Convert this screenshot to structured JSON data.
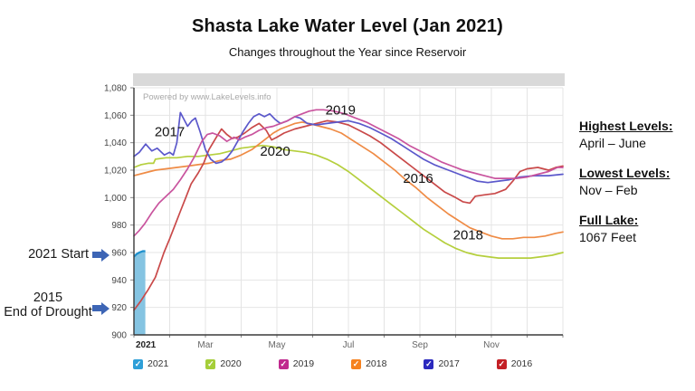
{
  "title": "Shasta Lake Water Level (Jan 2021)",
  "subtitle": "Changes throughout the Year since Reservoir",
  "watermark": "Powered by www.LakeLevels.info",
  "left_annotations": {
    "start_label": "2021 Start",
    "drought_year": "2015",
    "drought_label": "End of Drought",
    "arrow_color": "#3d65b5"
  },
  "info_panel": {
    "items": [
      {
        "heading": "Highest Levels:",
        "value": "April – June"
      },
      {
        "heading": "Lowest Levels:",
        "value": "Nov – Feb"
      },
      {
        "heading": "Full Lake:",
        "value": "1067 Feet"
      }
    ]
  },
  "legend": {
    "items": [
      {
        "label": "2021",
        "color": "#2E9FD8",
        "checked": true
      },
      {
        "label": "2020",
        "color": "#A5CE39",
        "checked": true
      },
      {
        "label": "2019",
        "color": "#C0288E",
        "checked": true
      },
      {
        "label": "2018",
        "color": "#F6821F",
        "checked": true
      },
      {
        "label": "2017",
        "color": "#2B29BE",
        "checked": true
      },
      {
        "label": "2016",
        "color": "#C42025",
        "checked": true
      }
    ]
  },
  "chart_data": {
    "type": "line",
    "title": "Shasta Lake water level by month (feet above sea level)",
    "xlabel": "",
    "ylabel": "",
    "grid": true,
    "x_axis": {
      "unit": "month",
      "range": [
        0,
        12
      ],
      "tick_months": [
        0,
        2,
        4,
        6,
        8,
        10
      ],
      "tick_labels": [
        "2021",
        "Mar",
        "May",
        "Jul",
        "Sep",
        "Nov"
      ]
    },
    "y_axis": {
      "min": 900,
      "max": 1080,
      "step": 20,
      "tick_labels": [
        "900",
        "920",
        "940",
        "960",
        "980",
        "1,000",
        "1,020",
        "1,040",
        "1,060",
        "1,080"
      ]
    },
    "ylim": [
      900,
      1080
    ],
    "series": [
      {
        "name": "2021",
        "type": "area",
        "color": "#1D8FCC",
        "fill": "#85C4E2",
        "points": [
          [
            0,
            957
          ],
          [
            0.08,
            959
          ],
          [
            0.15,
            960
          ],
          [
            0.25,
            961
          ],
          [
            0.32,
            961
          ]
        ]
      },
      {
        "name": "2020",
        "type": "line",
        "color": "#B5CF3D",
        "label_at": [
          3.95,
          1034
        ],
        "points": [
          [
            0,
            1022
          ],
          [
            0.2,
            1024
          ],
          [
            0.4,
            1025
          ],
          [
            0.55,
            1025
          ],
          [
            0.6,
            1028
          ],
          [
            0.9,
            1029
          ],
          [
            1.2,
            1029
          ],
          [
            1.5,
            1030
          ],
          [
            1.8,
            1030
          ],
          [
            2.1,
            1031
          ],
          [
            2.4,
            1032
          ],
          [
            2.7,
            1034
          ],
          [
            3.0,
            1036
          ],
          [
            3.3,
            1037
          ],
          [
            3.6,
            1038
          ],
          [
            3.9,
            1037
          ],
          [
            4.2,
            1035
          ],
          [
            4.5,
            1034
          ],
          [
            4.8,
            1033
          ],
          [
            5.1,
            1031
          ],
          [
            5.4,
            1028
          ],
          [
            5.7,
            1024
          ],
          [
            6.0,
            1019
          ],
          [
            6.3,
            1013
          ],
          [
            6.6,
            1007
          ],
          [
            6.9,
            1001
          ],
          [
            7.2,
            995
          ],
          [
            7.5,
            989
          ],
          [
            7.8,
            983
          ],
          [
            8.1,
            977
          ],
          [
            8.4,
            972
          ],
          [
            8.7,
            967
          ],
          [
            9.0,
            963
          ],
          [
            9.3,
            960
          ],
          [
            9.6,
            958
          ],
          [
            9.9,
            957
          ],
          [
            10.2,
            956
          ],
          [
            10.5,
            956
          ],
          [
            10.8,
            956
          ],
          [
            11.1,
            956
          ],
          [
            11.4,
            957
          ],
          [
            11.7,
            958
          ],
          [
            12,
            960
          ]
        ]
      },
      {
        "name": "2018",
        "type": "line",
        "color": "#EF8B45",
        "label_at": [
          9.35,
          973
        ],
        "points": [
          [
            0,
            1016
          ],
          [
            0.3,
            1018
          ],
          [
            0.6,
            1020
          ],
          [
            0.9,
            1021
          ],
          [
            1.2,
            1022
          ],
          [
            1.5,
            1023
          ],
          [
            1.8,
            1024
          ],
          [
            2.1,
            1025
          ],
          [
            2.4,
            1027
          ],
          [
            2.7,
            1028
          ],
          [
            3.0,
            1031
          ],
          [
            3.3,
            1035
          ],
          [
            3.6,
            1041
          ],
          [
            3.9,
            1047
          ],
          [
            4.1,
            1050
          ],
          [
            4.3,
            1052
          ],
          [
            4.5,
            1054
          ],
          [
            4.7,
            1055
          ],
          [
            4.9,
            1054
          ],
          [
            5.2,
            1052
          ],
          [
            5.5,
            1050
          ],
          [
            5.8,
            1047
          ],
          [
            6.1,
            1042
          ],
          [
            6.4,
            1037
          ],
          [
            6.7,
            1032
          ],
          [
            7.0,
            1026
          ],
          [
            7.3,
            1020
          ],
          [
            7.6,
            1013
          ],
          [
            7.9,
            1007
          ],
          [
            8.2,
            1000
          ],
          [
            8.5,
            994
          ],
          [
            8.8,
            988
          ],
          [
            9.1,
            983
          ],
          [
            9.4,
            978
          ],
          [
            9.7,
            975
          ],
          [
            10.0,
            972
          ],
          [
            10.3,
            970
          ],
          [
            10.6,
            970
          ],
          [
            10.9,
            971
          ],
          [
            11.2,
            971
          ],
          [
            11.5,
            972
          ],
          [
            11.8,
            974
          ],
          [
            12,
            975
          ]
        ]
      },
      {
        "name": "2016",
        "type": "line",
        "color": "#C94949",
        "label_at": [
          7.95,
          1014
        ],
        "points": [
          [
            0,
            918
          ],
          [
            0.2,
            925
          ],
          [
            0.4,
            933
          ],
          [
            0.6,
            942
          ],
          [
            0.84,
            960
          ],
          [
            1.0,
            970
          ],
          [
            1.15,
            980
          ],
          [
            1.3,
            990
          ],
          [
            1.45,
            1000
          ],
          [
            1.6,
            1010
          ],
          [
            1.8,
            1018
          ],
          [
            1.95,
            1025
          ],
          [
            2.1,
            1035
          ],
          [
            2.33,
            1045
          ],
          [
            2.45,
            1050
          ],
          [
            2.6,
            1046
          ],
          [
            2.75,
            1043
          ],
          [
            2.9,
            1044
          ],
          [
            3.1,
            1047
          ],
          [
            3.3,
            1051
          ],
          [
            3.5,
            1054
          ],
          [
            3.7,
            1049
          ],
          [
            3.85,
            1042
          ],
          [
            4.0,
            1044
          ],
          [
            4.2,
            1047
          ],
          [
            4.5,
            1050
          ],
          [
            4.8,
            1052
          ],
          [
            5.1,
            1054
          ],
          [
            5.4,
            1056
          ],
          [
            5.7,
            1055
          ],
          [
            6.0,
            1053
          ],
          [
            6.3,
            1049
          ],
          [
            6.6,
            1045
          ],
          [
            6.9,
            1040
          ],
          [
            7.2,
            1034
          ],
          [
            7.5,
            1028
          ],
          [
            7.8,
            1022
          ],
          [
            8.1,
            1016
          ],
          [
            8.4,
            1010
          ],
          [
            8.7,
            1004
          ],
          [
            9.0,
            1000
          ],
          [
            9.2,
            997
          ],
          [
            9.4,
            996
          ],
          [
            9.55,
            1001
          ],
          [
            9.8,
            1002
          ],
          [
            10.1,
            1003
          ],
          [
            10.4,
            1006
          ],
          [
            10.6,
            1012
          ],
          [
            10.8,
            1019
          ],
          [
            11.0,
            1021
          ],
          [
            11.3,
            1022
          ],
          [
            11.6,
            1020
          ],
          [
            11.8,
            1022
          ],
          [
            12,
            1023
          ]
        ]
      },
      {
        "name": "2017",
        "type": "line",
        "color": "#5B58CB",
        "label_at": [
          1.0,
          1048
        ],
        "points": [
          [
            0,
            1030
          ],
          [
            0.15,
            1033
          ],
          [
            0.33,
            1039
          ],
          [
            0.5,
            1034
          ],
          [
            0.65,
            1036
          ],
          [
            0.85,
            1031
          ],
          [
            1.0,
            1033
          ],
          [
            1.1,
            1031
          ],
          [
            1.2,
            1040
          ],
          [
            1.3,
            1062
          ],
          [
            1.4,
            1057
          ],
          [
            1.5,
            1052
          ],
          [
            1.62,
            1056
          ],
          [
            1.72,
            1058
          ],
          [
            1.85,
            1048
          ],
          [
            2.0,
            1035
          ],
          [
            2.15,
            1028
          ],
          [
            2.3,
            1025
          ],
          [
            2.45,
            1026
          ],
          [
            2.6,
            1029
          ],
          [
            2.75,
            1034
          ],
          [
            2.9,
            1041
          ],
          [
            3.05,
            1048
          ],
          [
            3.2,
            1054
          ],
          [
            3.35,
            1059
          ],
          [
            3.5,
            1061
          ],
          [
            3.65,
            1059
          ],
          [
            3.8,
            1061
          ],
          [
            3.95,
            1057
          ],
          [
            4.1,
            1054
          ],
          [
            4.3,
            1056
          ],
          [
            4.5,
            1059
          ],
          [
            4.65,
            1058
          ],
          [
            4.85,
            1054
          ],
          [
            5.1,
            1053
          ],
          [
            5.4,
            1054
          ],
          [
            5.7,
            1055
          ],
          [
            6.0,
            1056
          ],
          [
            6.3,
            1054
          ],
          [
            6.6,
            1051
          ],
          [
            6.9,
            1047
          ],
          [
            7.2,
            1043
          ],
          [
            7.5,
            1038
          ],
          [
            7.8,
            1033
          ],
          [
            8.1,
            1028
          ],
          [
            8.4,
            1024
          ],
          [
            8.7,
            1021
          ],
          [
            9.0,
            1018
          ],
          [
            9.3,
            1015
          ],
          [
            9.6,
            1012
          ],
          [
            9.9,
            1011
          ],
          [
            10.2,
            1012
          ],
          [
            10.5,
            1013
          ],
          [
            10.8,
            1015
          ],
          [
            11.2,
            1016
          ],
          [
            11.6,
            1016
          ],
          [
            12,
            1017
          ]
        ]
      },
      {
        "name": "2019",
        "type": "line",
        "color": "#C9549E",
        "label_at": [
          5.78,
          1064
        ],
        "points": [
          [
            0,
            972
          ],
          [
            0.15,
            976
          ],
          [
            0.3,
            981
          ],
          [
            0.5,
            989
          ],
          [
            0.7,
            996
          ],
          [
            0.9,
            1001
          ],
          [
            1.1,
            1006
          ],
          [
            1.3,
            1013
          ],
          [
            1.5,
            1021
          ],
          [
            1.7,
            1030
          ],
          [
            1.9,
            1041
          ],
          [
            2.05,
            1046
          ],
          [
            2.2,
            1047
          ],
          [
            2.4,
            1045
          ],
          [
            2.6,
            1041
          ],
          [
            2.8,
            1044
          ],
          [
            2.95,
            1042
          ],
          [
            3.1,
            1044
          ],
          [
            3.3,
            1046
          ],
          [
            3.5,
            1049
          ],
          [
            3.7,
            1051
          ],
          [
            3.9,
            1052
          ],
          [
            4.1,
            1054
          ],
          [
            4.3,
            1056
          ],
          [
            4.5,
            1059
          ],
          [
            4.7,
            1061
          ],
          [
            4.9,
            1063
          ],
          [
            5.1,
            1064
          ],
          [
            5.3,
            1064
          ],
          [
            5.6,
            1063
          ],
          [
            5.9,
            1061
          ],
          [
            6.2,
            1058
          ],
          [
            6.5,
            1055
          ],
          [
            6.8,
            1051
          ],
          [
            7.1,
            1047
          ],
          [
            7.4,
            1043
          ],
          [
            7.7,
            1038
          ],
          [
            8.0,
            1034
          ],
          [
            8.3,
            1030
          ],
          [
            8.6,
            1026
          ],
          [
            8.9,
            1023
          ],
          [
            9.2,
            1020
          ],
          [
            9.5,
            1018
          ],
          [
            9.8,
            1016
          ],
          [
            10.1,
            1014
          ],
          [
            10.4,
            1014
          ],
          [
            10.7,
            1014
          ],
          [
            11.0,
            1015
          ],
          [
            11.3,
            1017
          ],
          [
            11.6,
            1019
          ],
          [
            11.85,
            1022
          ],
          [
            12,
            1022
          ]
        ]
      }
    ]
  }
}
